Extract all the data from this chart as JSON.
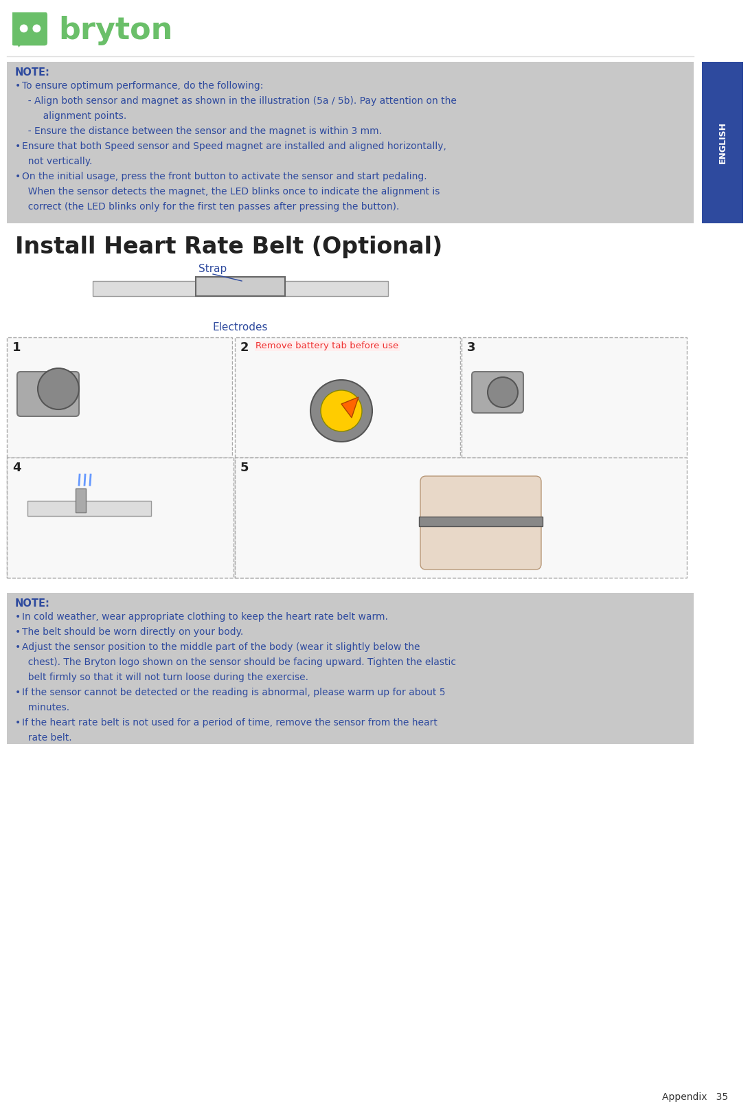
{
  "page_bg": "#ffffff",
  "logo_color": "#6abf69",
  "top_note_bg": "#c8c8c8",
  "english_tab_bg": "#2e4a9e",
  "english_tab_text": "#ffffff",
  "note_title": "NOTE:",
  "note1_lines": [
    "To ensure optimum performance, do the following:",
    "  - Align both sensor and magnet as shown in the illustration (5a / 5b). Pay attention on the",
    "       alignment points.",
    "  - Ensure the distance between the sensor and the magnet is within 3 mm.",
    "Ensure that both Speed sensor and Speed magnet are installed and aligned horizontally,",
    "  not vertically.",
    "On the initial usage, press the front button to activate the sensor and start pedaling.",
    "  When the sensor detects the magnet, the LED blinks once to indicate the alignment is",
    "  correct (the LED blinks only for the first ten passes after pressing the button)."
  ],
  "section_title": "Install Heart Rate Belt (Optional)",
  "strap_label": "Strap",
  "electrodes_label": "Electrodes",
  "step_labels": [
    "1",
    "2",
    "3",
    "4",
    "5"
  ],
  "step2_note": "Remove battery tab before use",
  "bottom_note_bg": "#c8c8c8",
  "bottom_note_lines": [
    "In cold weather, wear appropriate clothing to keep the heart rate belt warm.",
    "The belt should be worn directly on your body.",
    "Adjust the sensor position to the middle part of the body (wear it slightly below the",
    "  chest). The Bryton logo shown on the sensor should be facing upward. Tighten the elastic",
    "  belt firmly so that it will not turn loose during the exercise.",
    "If the sensor cannot be detected or the reading is abnormal, please warm up for about 5",
    "  minutes.",
    "If the heart rate belt is not used for a period of time, remove the sensor from the heart",
    "  rate belt."
  ],
  "footer_text": "Appendix   35",
  "text_color_note": "#2e4a9e",
  "text_color_dark": "#333333",
  "step_border_color": "#aaaaaa",
  "dpi": 100,
  "fig_width": 10.92,
  "fig_height": 16.07
}
